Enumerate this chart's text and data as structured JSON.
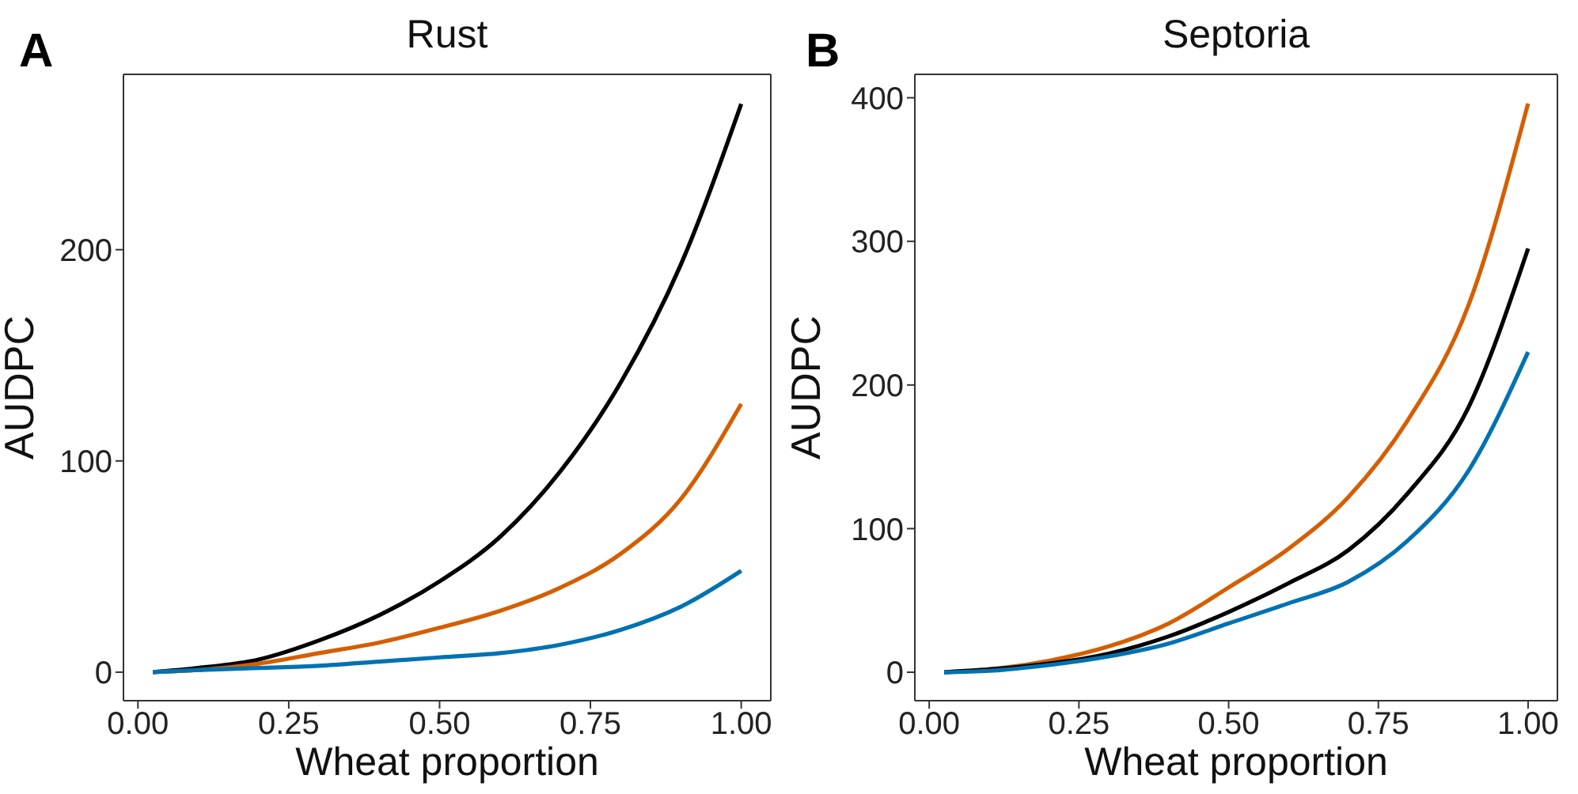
{
  "chart_data": [
    {
      "type": "line",
      "title": "Rust",
      "annotations": [
        "A"
      ],
      "xlabel": "Wheat proportion",
      "ylabel": "AUDPC",
      "x": [
        0.025,
        0.1,
        0.2,
        0.3,
        0.4,
        0.5,
        0.6,
        0.7,
        0.8,
        0.9,
        1.0
      ],
      "series": [
        {
          "color": "#000000",
          "values": [
            0,
            2,
            6,
            15,
            27,
            43,
            64,
            95,
            137,
            193,
            269
          ]
        },
        {
          "color": "#d55e00",
          "values": [
            0,
            1,
            4,
            9,
            14,
            21,
            29,
            40,
            56,
            82,
            127
          ]
        },
        {
          "color": "#0072b2",
          "values": [
            0,
            1,
            2,
            3,
            5,
            7,
            9,
            13,
            20,
            31,
            48
          ]
        }
      ],
      "xlim": [
        -0.024,
        1.049
      ],
      "xticks": [
        {
          "value": 0,
          "label": "0.00"
        },
        {
          "value": 0.25,
          "label": "0.25"
        },
        {
          "value": 0.5,
          "label": "0.50"
        },
        {
          "value": 0.75,
          "label": "0.75"
        },
        {
          "value": 1,
          "label": "1.00"
        }
      ],
      "ylim": [
        -13.5,
        283
      ],
      "yticks": [
        0,
        100,
        200
      ],
      "grid": false,
      "legend": false,
      "marker": "none",
      "line_style": "solid"
    },
    {
      "type": "line",
      "title": "Septoria",
      "annotations": [
        "B"
      ],
      "xlabel": "Wheat proportion",
      "ylabel": "AUDPC",
      "x": [
        0.025,
        0.1,
        0.2,
        0.3,
        0.4,
        0.5,
        0.6,
        0.7,
        0.8,
        0.9,
        1.0
      ],
      "series": [
        {
          "color": "#d55e00",
          "values": [
            0,
            2,
            8,
            18,
            34,
            59,
            86,
            122,
            176,
            255,
            396
          ]
        },
        {
          "color": "#000000",
          "values": [
            0,
            2,
            6,
            13,
            25,
            42,
            62,
            85,
            125,
            184,
            295
          ]
        },
        {
          "color": "#0072b2",
          "values": [
            0,
            1,
            5,
            11,
            20,
            34,
            48,
            63,
            92,
            140,
            223
          ]
        }
      ],
      "xlim": [
        -0.024,
        1.049
      ],
      "xticks": [
        {
          "value": 0,
          "label": "0.00"
        },
        {
          "value": 0.25,
          "label": "0.25"
        },
        {
          "value": 0.5,
          "label": "0.50"
        },
        {
          "value": 0.75,
          "label": "0.75"
        },
        {
          "value": 1,
          "label": "1.00"
        }
      ],
      "ylim": [
        -19.8,
        416.3
      ],
      "yticks": [
        0,
        100,
        200,
        300,
        400
      ],
      "grid": false,
      "legend": false,
      "marker": "none",
      "line_style": "solid"
    }
  ]
}
